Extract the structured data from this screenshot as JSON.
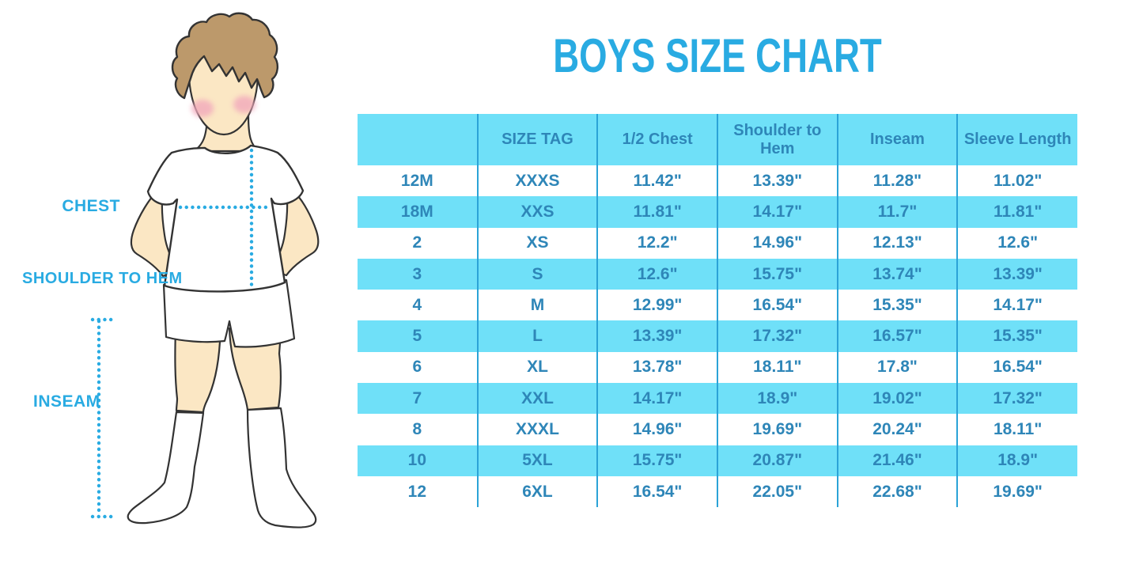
{
  "title": "BOYS SIZE CHART",
  "figure_labels": {
    "chest": "CHEST",
    "shoulder_to_hem": "SHOULDER TO HEM",
    "inseam": "INSEAM"
  },
  "chart_data": {
    "type": "table",
    "title": "BOYS SIZE CHART",
    "columns": [
      "",
      "SIZE TAG",
      "1/2 Chest",
      "Shoulder to Hem",
      "Inseam",
      "Sleeve Length"
    ],
    "rows": [
      [
        "12M",
        "XXXS",
        "11.42\"",
        "13.39\"",
        "11.28\"",
        "11.02\""
      ],
      [
        "18M",
        "XXS",
        "11.81\"",
        "14.17\"",
        "11.7\"",
        "11.81\""
      ],
      [
        "2",
        "XS",
        "12.2\"",
        "14.96\"",
        "12.13\"",
        "12.6\""
      ],
      [
        "3",
        "S",
        "12.6\"",
        "15.75\"",
        "13.74\"",
        "13.39\""
      ],
      [
        "4",
        "M",
        "12.99\"",
        "16.54\"",
        "15.35\"",
        "14.17\""
      ],
      [
        "5",
        "L",
        "13.39\"",
        "17.32\"",
        "16.57\"",
        "15.35\""
      ],
      [
        "6",
        "XL",
        "13.78\"",
        "18.11\"",
        "17.8\"",
        "16.54\""
      ],
      [
        "7",
        "XXL",
        "14.17\"",
        "18.9\"",
        "19.02\"",
        "17.32\""
      ],
      [
        "8",
        "XXXL",
        "14.96\"",
        "19.69\"",
        "20.24\"",
        "18.11\""
      ],
      [
        "10",
        "5XL",
        "15.75\"",
        "20.87\"",
        "21.46\"",
        "18.9\""
      ],
      [
        "12",
        "6XL",
        "16.54\"",
        "22.05\"",
        "22.68\"",
        "19.69\""
      ]
    ]
  },
  "colors": {
    "accent_blue": "#29ABE2",
    "table_stripe_cyan": "#6FE0F8",
    "table_text_blue": "#2E86B8",
    "table_divider_blue": "#2BA3D7",
    "skin": "#FBE7C4",
    "hair_brown": "#BC996B",
    "cheek_pink": "#F2A9BC",
    "outline": "#333333"
  }
}
